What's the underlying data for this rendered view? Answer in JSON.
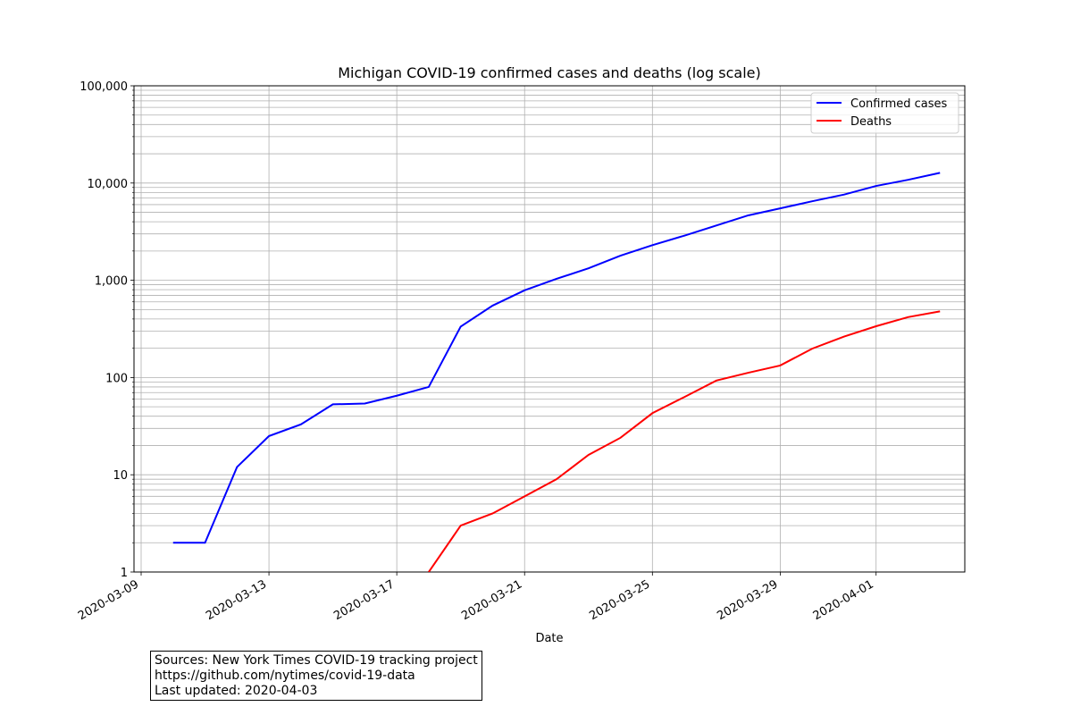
{
  "chart_data": {
    "type": "line",
    "title": "Michigan COVID-19 confirmed cases and deaths (log scale)",
    "xlabel": "Date",
    "ylabel": "",
    "y_scale": "log",
    "ylim": [
      1,
      100000
    ],
    "xlim": [
      "2020-03-09",
      "2020-04-04"
    ],
    "grid": true,
    "legend_position": "top-right",
    "x_ticks": [
      "2020-03-09",
      "2020-03-13",
      "2020-03-17",
      "2020-03-21",
      "2020-03-25",
      "2020-03-29",
      "2020-04-01"
    ],
    "y_ticks": [
      {
        "value": 1,
        "label": "1"
      },
      {
        "value": 10,
        "label": "10"
      },
      {
        "value": 100,
        "label": "100"
      },
      {
        "value": 1000,
        "label": "1,000"
      },
      {
        "value": 10000,
        "label": "10,000"
      },
      {
        "value": 100000,
        "label": "100,000"
      }
    ],
    "series": [
      {
        "name": "Confirmed cases",
        "color": "#0000ff",
        "points": [
          {
            "x": "2020-03-10",
            "y": 2
          },
          {
            "x": "2020-03-11",
            "y": 2
          },
          {
            "x": "2020-03-12",
            "y": 12
          },
          {
            "x": "2020-03-13",
            "y": 25
          },
          {
            "x": "2020-03-14",
            "y": 33
          },
          {
            "x": "2020-03-15",
            "y": 53
          },
          {
            "x": "2020-03-16",
            "y": 54
          },
          {
            "x": "2020-03-17",
            "y": 65
          },
          {
            "x": "2020-03-18",
            "y": 80
          },
          {
            "x": "2020-03-19",
            "y": 334
          },
          {
            "x": "2020-03-20",
            "y": 549
          },
          {
            "x": "2020-03-21",
            "y": 788
          },
          {
            "x": "2020-03-22",
            "y": 1035
          },
          {
            "x": "2020-03-23",
            "y": 1329
          },
          {
            "x": "2020-03-24",
            "y": 1793
          },
          {
            "x": "2020-03-25",
            "y": 2296
          },
          {
            "x": "2020-03-26",
            "y": 2877
          },
          {
            "x": "2020-03-27",
            "y": 3657
          },
          {
            "x": "2020-03-28",
            "y": 4650
          },
          {
            "x": "2020-03-29",
            "y": 5488
          },
          {
            "x": "2020-03-30",
            "y": 6498
          },
          {
            "x": "2020-03-31",
            "y": 7615
          },
          {
            "x": "2020-04-01",
            "y": 9334
          },
          {
            "x": "2020-04-02",
            "y": 10791
          },
          {
            "x": "2020-04-03",
            "y": 12744
          }
        ]
      },
      {
        "name": "Deaths",
        "color": "#ff0000",
        "points": [
          {
            "x": "2020-03-18",
            "y": 1
          },
          {
            "x": "2020-03-19",
            "y": 3
          },
          {
            "x": "2020-03-20",
            "y": 4
          },
          {
            "x": "2020-03-21",
            "y": 6
          },
          {
            "x": "2020-03-22",
            "y": 9
          },
          {
            "x": "2020-03-23",
            "y": 16
          },
          {
            "x": "2020-03-24",
            "y": 24
          },
          {
            "x": "2020-03-25",
            "y": 43
          },
          {
            "x": "2020-03-26",
            "y": 63
          },
          {
            "x": "2020-03-27",
            "y": 93
          },
          {
            "x": "2020-03-28",
            "y": 112
          },
          {
            "x": "2020-03-29",
            "y": 133
          },
          {
            "x": "2020-03-30",
            "y": 198
          },
          {
            "x": "2020-03-31",
            "y": 264
          },
          {
            "x": "2020-04-01",
            "y": 337
          },
          {
            "x": "2020-04-02",
            "y": 418
          },
          {
            "x": "2020-04-03",
            "y": 479
          }
        ]
      }
    ]
  },
  "sources": {
    "line1": "Sources: New York Times COVID-19 tracking project",
    "line2": "https://github.com/nytimes/covid-19-data",
    "line3": "Last updated: 2020-04-03"
  }
}
